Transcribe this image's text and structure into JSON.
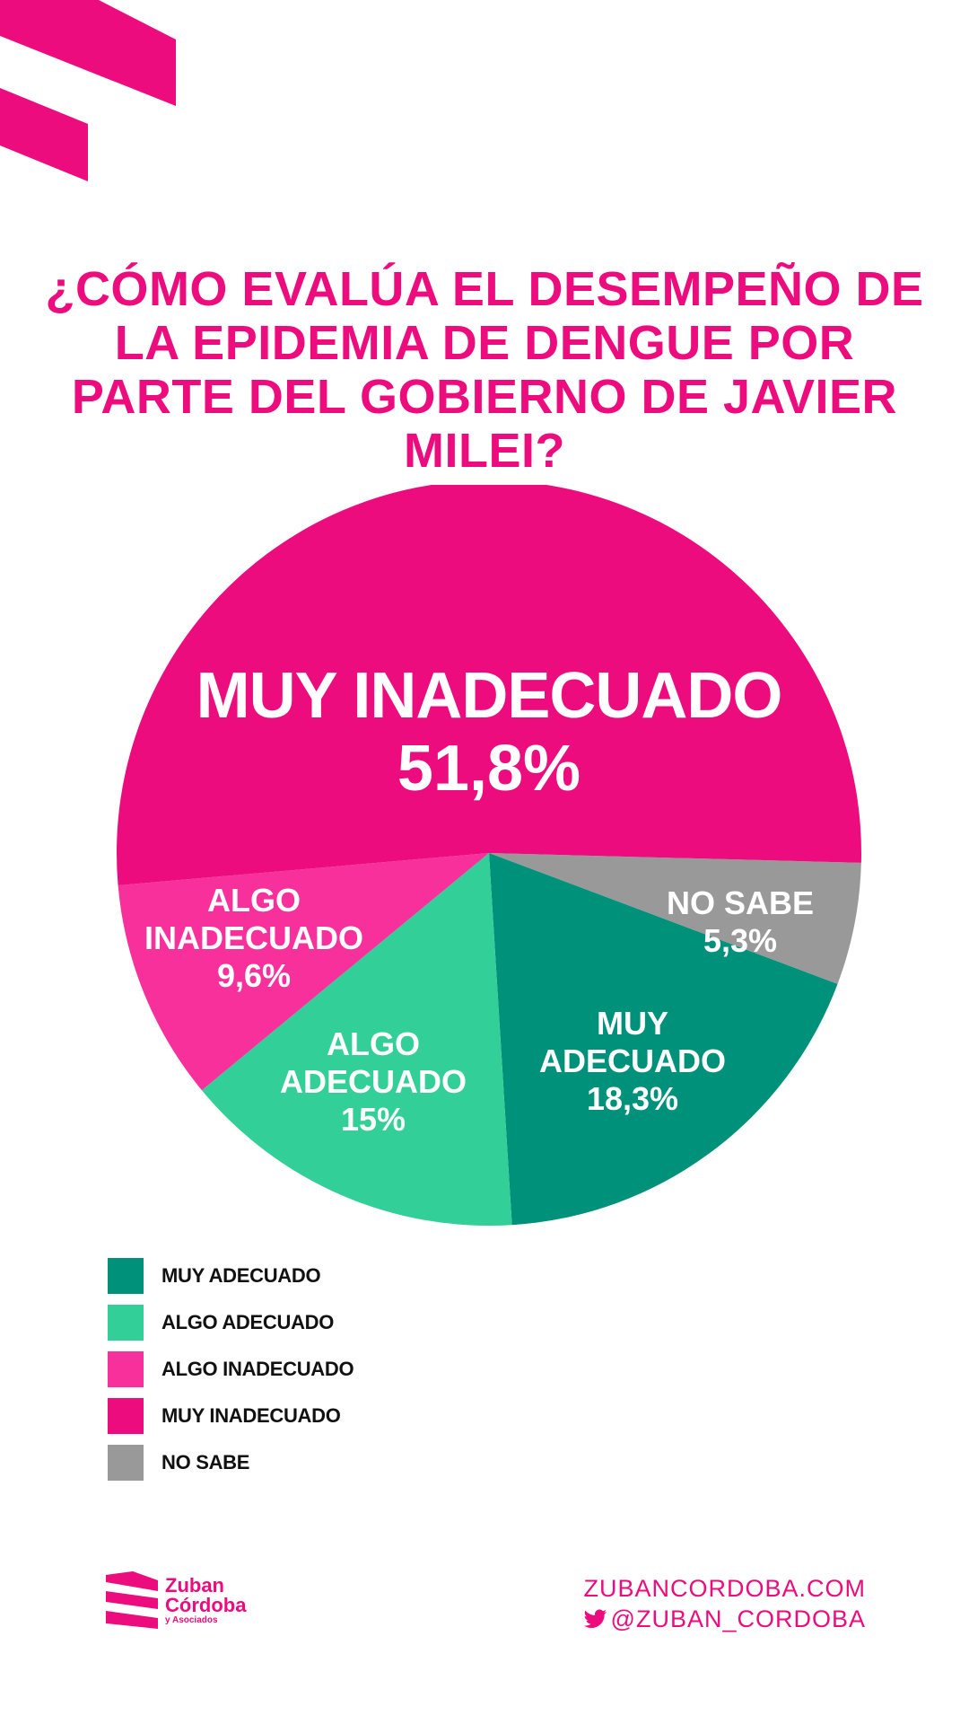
{
  "title": "¿CÓMO EVALÚA EL DESEMPEÑO DE LA EPIDEMIA DE DENGUE POR PARTE DEL GOBIERNO DE JAVIER MILEI?",
  "colors": {
    "brand": "#ec0c7d",
    "muy_adecuado": "#00917a",
    "algo_adecuado": "#33cf98",
    "algo_inadecuado": "#f7309c",
    "muy_inadecuado": "#ec0c7d",
    "no_sabe": "#999999"
  },
  "chart_data": {
    "type": "pie",
    "title": "¿CÓMO EVALÚA EL DESEMPEÑO DE LA EPIDEMIA DE DENGUE POR PARTE DEL GOBIERNO DE JAVIER MILEI?",
    "slices": [
      {
        "key": "no_sabe",
        "label": "NO SABE",
        "value": 5.3,
        "display": "5,3%",
        "color": "#999999"
      },
      {
        "key": "muy_adecuado",
        "label": "MUY ADECUADO",
        "value": 18.3,
        "display": "18,3%",
        "color": "#00917a"
      },
      {
        "key": "algo_adecuado",
        "label": "ALGO ADECUADO",
        "value": 15,
        "display": "15%",
        "color": "#33cf98"
      },
      {
        "key": "algo_inadecuado",
        "label": "ALGO INADECUADO",
        "value": 9.6,
        "display": "9,6%",
        "color": "#f7309c"
      },
      {
        "key": "muy_inadecuado",
        "label": "MUY INADECUADO",
        "value": 51.8,
        "display": "51,8%",
        "color": "#ec0c7d"
      }
    ],
    "legend": [
      "MUY ADECUADO",
      "ALGO ADECUADO",
      "ALGO INADECUADO",
      "MUY INADECUADO",
      "NO SABE"
    ],
    "legend_placement": "bottom-left"
  },
  "slice_labels": {
    "muy_inadecuado": {
      "name": "MUY INADECUADO",
      "pct": "51,8%"
    },
    "algo_inadecuado": {
      "line1": "ALGO",
      "line2": "INADECUADO",
      "pct": "9,6%"
    },
    "algo_adecuado": {
      "line1": "ALGO",
      "line2": "ADECUADO",
      "pct": "15%"
    },
    "muy_adecuado": {
      "line1": "MUY",
      "line2": "ADECUADO",
      "pct": "18,3%"
    },
    "no_sabe": {
      "name": "NO SABE",
      "pct": "5,3%"
    }
  },
  "footer": {
    "brand_line1": "Zuban",
    "brand_line2": "Córdoba",
    "brand_line3": "y Asociados",
    "website": "ZUBANCORDOBA.COM",
    "handle": "@ZUBAN_CORDOBA",
    "twitter_icon": "twitter-bird-icon"
  }
}
